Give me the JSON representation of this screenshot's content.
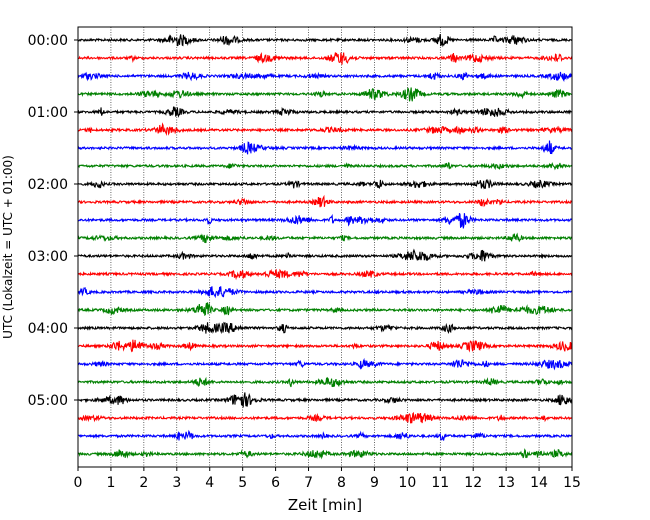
{
  "chart_data": {
    "type": "line",
    "xlabel": "Zeit  [min]",
    "ylabel": "UTC (Lokalzeit = UTC + 01:00)",
    "xlim": [
      0,
      15
    ],
    "x_ticks": [
      "0",
      "1",
      "2",
      "3",
      "4",
      "5",
      "6",
      "7",
      "8",
      "9",
      "10",
      "11",
      "12",
      "13",
      "14",
      "15"
    ],
    "y_ticks": [
      {
        "label": "00:00",
        "trace": 0
      },
      {
        "label": "01:00",
        "trace": 4
      },
      {
        "label": "02:00",
        "trace": 8
      },
      {
        "label": "03:00",
        "trace": 12
      },
      {
        "label": "04:00",
        "trace": 16
      },
      {
        "label": "05:00",
        "trace": 20
      }
    ],
    "trace_minutes": 15,
    "trace_count": 24,
    "colors": [
      "#000000",
      "#ff0000",
      "#0000ff",
      "#008000"
    ],
    "grid": "vertical-dotted"
  }
}
